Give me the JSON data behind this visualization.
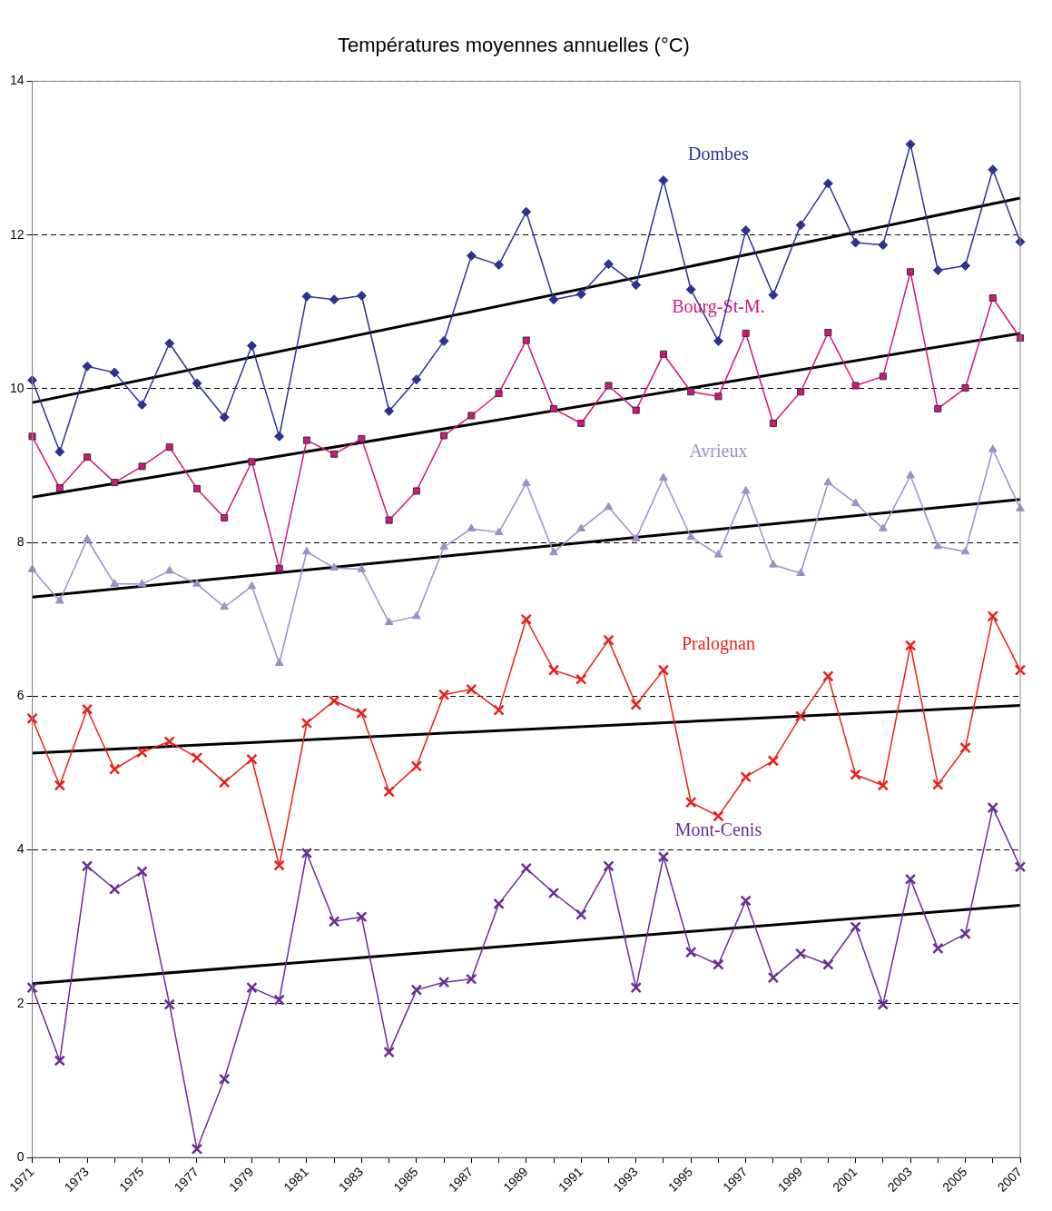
{
  "chart_data": {
    "type": "line",
    "title": "Températures moyennes annuelles (°C)",
    "categories": [
      "1971",
      null,
      "1973",
      null,
      "1975",
      null,
      "1977",
      null,
      "1979",
      null,
      "1981",
      null,
      "1983",
      null,
      "1985",
      null,
      "1987",
      null,
      "1989",
      null,
      "1991",
      null,
      "1993",
      null,
      "1995",
      null,
      "1997",
      null,
      "1999",
      null,
      "2001",
      null,
      "2003",
      null,
      "2005",
      null,
      "2007"
    ],
    "ylim": [
      0,
      14
    ],
    "yticks": [
      0,
      2,
      4,
      6,
      8,
      10,
      12,
      14
    ],
    "grid": "y",
    "legend": false,
    "line_style": "solid",
    "series": [
      {
        "name": "Dombes",
        "color": "#2e3192",
        "marker": "diamond",
        "values": [
          10.11,
          9.18,
          10.29,
          10.21,
          9.79,
          10.59,
          10.07,
          9.63,
          10.56,
          9.38,
          11.2,
          11.16,
          11.21,
          9.71,
          10.12,
          10.62,
          11.73,
          11.61,
          12.3,
          11.16,
          11.23,
          11.62,
          11.35,
          12.71,
          11.29,
          10.62,
          12.06,
          11.22,
          12.13,
          12.67,
          11.9,
          11.87,
          13.18,
          11.54,
          11.6,
          12.85,
          11.91
        ]
      },
      {
        "name": "Bourg-St-M.",
        "color": "#d4147c",
        "marker": "square",
        "values": [
          9.38,
          8.71,
          9.11,
          8.78,
          8.99,
          9.24,
          8.7,
          8.32,
          9.05,
          7.66,
          9.33,
          9.15,
          9.35,
          8.29,
          8.67,
          9.39,
          9.65,
          9.94,
          10.63,
          9.74,
          9.55,
          10.04,
          9.72,
          10.45,
          9.96,
          9.9,
          10.72,
          9.55,
          9.96,
          10.73,
          10.04,
          10.16,
          11.52,
          9.74,
          10.01,
          11.18,
          10.66
        ]
      },
      {
        "name": "Avrieux",
        "color": "#a08cc8",
        "marker": "triangle",
        "values": [
          7.65,
          7.24,
          8.04,
          7.46,
          7.46,
          7.63,
          7.46,
          7.16,
          7.43,
          6.43,
          7.88,
          7.67,
          7.65,
          6.96,
          7.04,
          7.94,
          8.18,
          8.13,
          8.77,
          7.87,
          8.18,
          8.46,
          8.05,
          8.84,
          8.07,
          7.84,
          8.67,
          7.71,
          7.6,
          8.78,
          8.51,
          8.18,
          8.87,
          7.95,
          7.88,
          9.21,
          8.44
        ]
      },
      {
        "name": "Pralognan",
        "color": "#e8201c",
        "marker": "cross",
        "values": [
          5.71,
          4.84,
          5.83,
          5.05,
          5.27,
          5.41,
          5.2,
          4.88,
          5.18,
          3.8,
          5.65,
          5.94,
          5.78,
          4.76,
          5.09,
          6.02,
          6.09,
          5.82,
          7.0,
          6.34,
          6.22,
          6.73,
          5.89,
          6.34,
          4.62,
          4.44,
          4.95,
          5.16,
          5.74,
          6.26,
          4.98,
          4.84,
          6.66,
          4.85,
          5.33,
          7.04,
          6.34
        ]
      },
      {
        "name": "Mont-Cenis",
        "color": "#6a2c96",
        "marker": "cross",
        "values": [
          2.21,
          1.26,
          3.79,
          3.49,
          3.72,
          1.99,
          0.11,
          1.02,
          2.21,
          2.05,
          3.96,
          3.07,
          3.13,
          1.37,
          2.18,
          2.28,
          2.32,
          3.3,
          3.76,
          3.44,
          3.16,
          3.79,
          2.21,
          3.91,
          2.67,
          2.51,
          3.34,
          2.34,
          2.65,
          2.51,
          3.0,
          1.99,
          3.62,
          2.72,
          2.91,
          4.55,
          3.78
        ]
      },
      {
        "type": "line",
        "color": "#000000",
        "marker": "none",
        "values": [
          9.82,
          null,
          null,
          null,
          null,
          null,
          null,
          null,
          null,
          null,
          null,
          null,
          null,
          null,
          null,
          null,
          null,
          null,
          null,
          null,
          null,
          null,
          null,
          null,
          null,
          null,
          null,
          null,
          null,
          null,
          null,
          null,
          null,
          null,
          null,
          null,
          12.48
        ]
      },
      {
        "type": "line",
        "color": "#000000",
        "marker": "none",
        "values": [
          8.59,
          null,
          null,
          null,
          null,
          null,
          null,
          null,
          null,
          null,
          null,
          null,
          null,
          null,
          null,
          null,
          null,
          null,
          null,
          null,
          null,
          null,
          null,
          null,
          null,
          null,
          null,
          null,
          null,
          null,
          null,
          null,
          null,
          null,
          null,
          null,
          10.72
        ]
      },
      {
        "type": "line",
        "color": "#000000",
        "marker": "none",
        "values": [
          7.29,
          null,
          null,
          null,
          null,
          null,
          null,
          null,
          null,
          null,
          null,
          null,
          null,
          null,
          null,
          null,
          null,
          null,
          null,
          null,
          null,
          null,
          null,
          null,
          null,
          null,
          null,
          null,
          null,
          null,
          null,
          null,
          null,
          null,
          null,
          null,
          8.56
        ]
      },
      {
        "type": "line",
        "color": "#000000",
        "marker": "none",
        "values": [
          5.26,
          null,
          null,
          null,
          null,
          null,
          null,
          null,
          null,
          null,
          null,
          null,
          null,
          null,
          null,
          null,
          null,
          null,
          null,
          null,
          null,
          null,
          null,
          null,
          null,
          null,
          null,
          null,
          null,
          null,
          null,
          null,
          null,
          null,
          null,
          null,
          5.88
        ]
      },
      {
        "type": "line",
        "color": "#000000",
        "marker": "none",
        "values": [
          2.26,
          null,
          null,
          null,
          null,
          null,
          null,
          null,
          null,
          null,
          null,
          null,
          null,
          null,
          null,
          null,
          null,
          null,
          null,
          null,
          null,
          null,
          null,
          null,
          null,
          null,
          null,
          null,
          null,
          null,
          null,
          null,
          null,
          null,
          null,
          null,
          3.28
        ]
      }
    ]
  }
}
